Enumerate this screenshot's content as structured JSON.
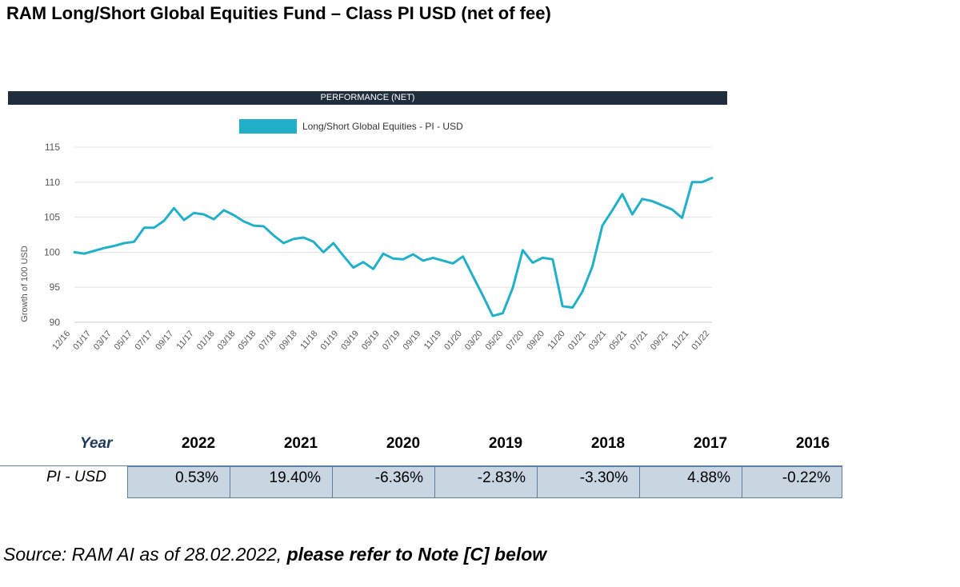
{
  "page": {
    "title": "RAM Long/Short Global Equities Fund – Class PI USD (net of fee)",
    "banner": "PERFORMANCE (NET)",
    "source_text": "Source: RAM AI as of 28.02.2022, ",
    "source_bold": "please refer to Note [C] below"
  },
  "colors": {
    "line": "#22b0c8",
    "banner": "#1f2d3d",
    "table_fill": "#c8d6e2",
    "grid": "#e3e3e3"
  },
  "chart_data": {
    "type": "line",
    "legend_position": "top",
    "ylabel": "Growth of 100  USD",
    "ylim": [
      90,
      115
    ],
    "yticks": [
      90,
      95,
      100,
      105,
      110,
      115
    ],
    "grid": true,
    "tick_labels": [
      "12/16",
      "01/17",
      "03/17",
      "05/17",
      "07/17",
      "09/17",
      "11/17",
      "01/18",
      "03/18",
      "05/18",
      "07/18",
      "09/18",
      "11/18",
      "01/19",
      "03/19",
      "05/19",
      "07/19",
      "09/19",
      "11/19",
      "01/20",
      "03/20",
      "05/20",
      "07/20",
      "09/20",
      "11/20",
      "01/21",
      "03/21",
      "05/21",
      "07/21",
      "09/21",
      "11/21",
      "01/22"
    ],
    "series": [
      {
        "name": "Long/Short Global Equities - PI - USD",
        "values": [
          100.0,
          99.8,
          100.2,
          100.6,
          100.9,
          101.3,
          101.5,
          103.5,
          103.5,
          104.5,
          106.3,
          104.6,
          105.6,
          105.4,
          104.7,
          106.0,
          105.3,
          104.4,
          103.8,
          103.7,
          102.4,
          101.3,
          101.9,
          102.1,
          101.5,
          100.0,
          101.3,
          99.5,
          97.8,
          98.6,
          97.6,
          99.8,
          99.1,
          99.0,
          99.7,
          98.8,
          99.2,
          98.8,
          98.4,
          99.4,
          96.6,
          93.8,
          90.9,
          91.3,
          94.9,
          100.3,
          98.5,
          99.2,
          99.0,
          92.3,
          92.1,
          94.4,
          98.0,
          103.8,
          106.0,
          108.3,
          105.4,
          107.6,
          107.3,
          106.7,
          106.1,
          104.9,
          110.0,
          110.0,
          110.6
        ]
      }
    ]
  },
  "table": {
    "year_label": "Year",
    "years": [
      "2022",
      "2021",
      "2020",
      "2019",
      "2018",
      "2017",
      "2016"
    ],
    "row_label": "PI - USD",
    "values": [
      "0.53%",
      "19.40%",
      "-6.36%",
      "-2.83%",
      "-3.30%",
      "4.88%",
      "-0.22%"
    ]
  }
}
